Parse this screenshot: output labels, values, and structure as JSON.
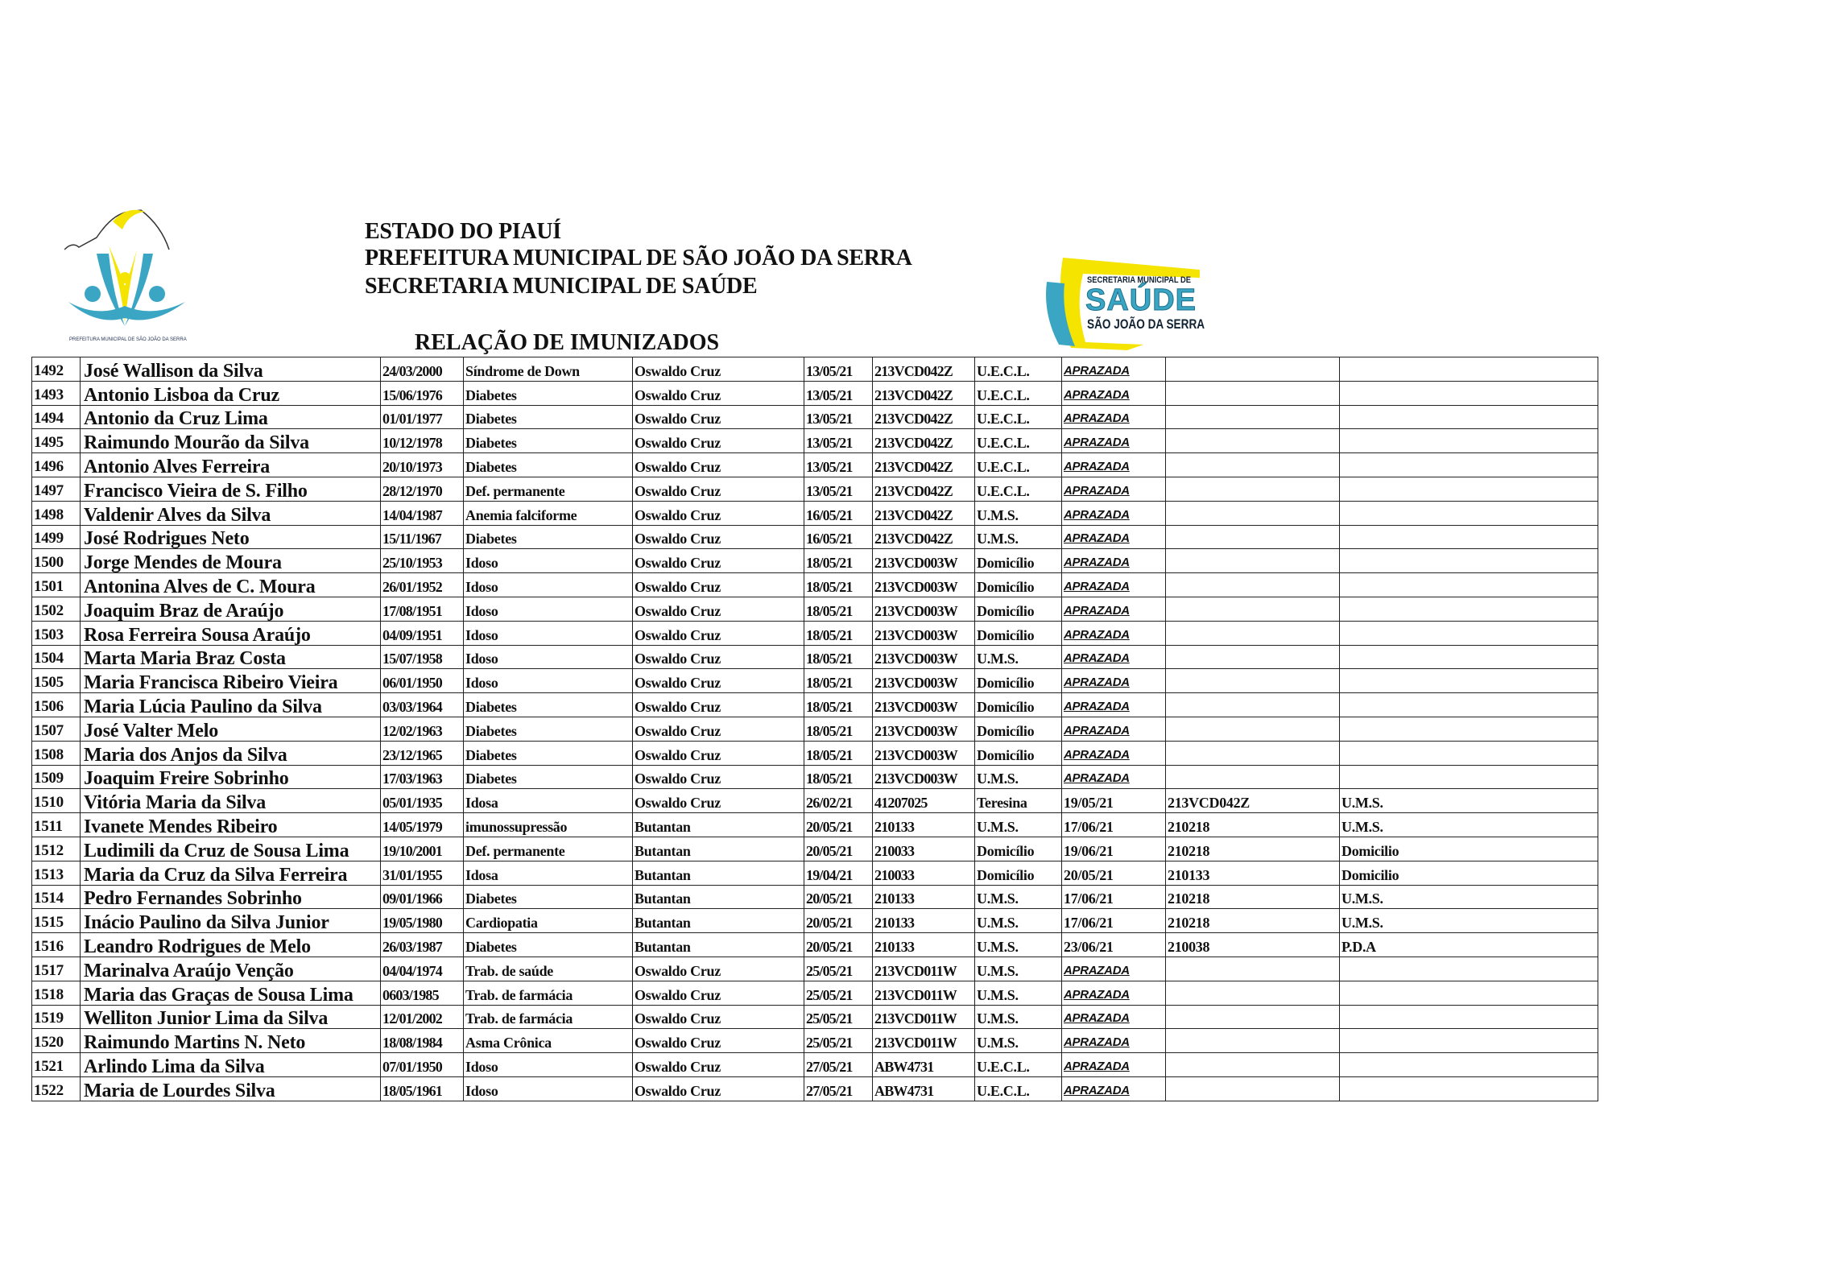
{
  "header": {
    "line1": "ESTADO DO PIAUÍ",
    "line2": "PREFEITURA MUNICIPAL DE SÃO JOÃO DA SERRA",
    "line3": "SECRETARIA MUNICIPAL DE SAÚDE",
    "title": "RELAÇÃO DE IMUNIZADOS"
  },
  "logo_left": {
    "caption": "PREFEITURA MUNICIPAL DE SÃO JOÃO DA SERRA"
  },
  "logo_right": {
    "line1": "SECRETARIA MUNICIPAL DE",
    "line2": "SAÚDE",
    "line3": "SÃO JOÃO DA SERRA"
  },
  "colors": {
    "logo_blue": "#3aa6c4",
    "logo_yellow": "#f5e400",
    "text": "#111111"
  },
  "rows": [
    [
      "1492",
      "José Wallison da Silva",
      "24/03/2000",
      "Síndrome de Down",
      "Oswaldo Cruz",
      "13/05/21",
      "213VCD042Z",
      "U.E.C.L.",
      "APRAZADA",
      "",
      ""
    ],
    [
      "1493",
      "Antonio Lisboa da Cruz",
      "15/06/1976",
      "Diabetes",
      "Oswaldo Cruz",
      "13/05/21",
      "213VCD042Z",
      "U.E.C.L.",
      "APRAZADA",
      "",
      ""
    ],
    [
      "1494",
      "Antonio da Cruz Lima",
      "01/01/1977",
      "Diabetes",
      "Oswaldo Cruz",
      "13/05/21",
      "213VCD042Z",
      "U.E.C.L.",
      "APRAZADA",
      "",
      ""
    ],
    [
      "1495",
      "Raimundo Mourão da Silva",
      "10/12/1978",
      "Diabetes",
      "Oswaldo Cruz",
      "13/05/21",
      "213VCD042Z",
      "U.E.C.L.",
      "APRAZADA",
      "",
      ""
    ],
    [
      "1496",
      "Antonio Alves Ferreira",
      "20/10/1973",
      "Diabetes",
      "Oswaldo Cruz",
      "13/05/21",
      "213VCD042Z",
      "U.E.C.L.",
      "APRAZADA",
      "",
      ""
    ],
    [
      "1497",
      "Francisco Vieira de S. Filho",
      "28/12/1970",
      "Def. permanente",
      "Oswaldo Cruz",
      "13/05/21",
      "213VCD042Z",
      "U.E.C.L.",
      "APRAZADA",
      "",
      ""
    ],
    [
      "1498",
      "Valdenir Alves da Silva",
      "14/04/1987",
      "Anemia falciforme",
      "Oswaldo Cruz",
      "16/05/21",
      "213VCD042Z",
      "U.M.S.",
      "APRAZADA",
      "",
      ""
    ],
    [
      "1499",
      "José Rodrigues Neto",
      "15/11/1967",
      "Diabetes",
      "Oswaldo Cruz",
      "16/05/21",
      "213VCD042Z",
      "U.M.S.",
      "APRAZADA",
      "",
      ""
    ],
    [
      "1500",
      "Jorge Mendes de Moura",
      "25/10/1953",
      "Idoso",
      "Oswaldo Cruz",
      "18/05/21",
      "213VCD003W",
      "Domicílio",
      "APRAZADA",
      "",
      ""
    ],
    [
      "1501",
      "Antonina Alves de C. Moura",
      "26/01/1952",
      "Idoso",
      "Oswaldo Cruz",
      "18/05/21",
      "213VCD003W",
      "Domicílio",
      "APRAZADA",
      "",
      ""
    ],
    [
      "1502",
      "Joaquim Braz de Araújo",
      "17/08/1951",
      "Idoso",
      "Oswaldo Cruz",
      "18/05/21",
      "213VCD003W",
      "Domicílio",
      "APRAZADA",
      "",
      ""
    ],
    [
      "1503",
      "Rosa Ferreira Sousa Araújo",
      "04/09/1951",
      "Idoso",
      "Oswaldo Cruz",
      "18/05/21",
      "213VCD003W",
      "Domicílio",
      "APRAZADA",
      "",
      ""
    ],
    [
      "1504",
      "Marta Maria Braz Costa",
      "15/07/1958",
      "Idoso",
      "Oswaldo Cruz",
      "18/05/21",
      "213VCD003W",
      "U.M.S.",
      "APRAZADA",
      "",
      ""
    ],
    [
      "1505",
      "Maria Francisca Ribeiro Vieira",
      "06/01/1950",
      "Idoso",
      "Oswaldo Cruz",
      "18/05/21",
      "213VCD003W",
      "Domicílio",
      "APRAZADA",
      "",
      ""
    ],
    [
      "1506",
      "Maria Lúcia Paulino da Silva",
      "03/03/1964",
      "Diabetes",
      "Oswaldo Cruz",
      "18/05/21",
      "213VCD003W",
      "Domicílio",
      "APRAZADA",
      "",
      ""
    ],
    [
      "1507",
      "José Valter Melo",
      "12/02/1963",
      "Diabetes",
      "Oswaldo Cruz",
      "18/05/21",
      "213VCD003W",
      "Domicílio",
      "APRAZADA",
      "",
      ""
    ],
    [
      "1508",
      "Maria dos Anjos da Silva",
      "23/12/1965",
      "Diabetes",
      "Oswaldo Cruz",
      "18/05/21",
      "213VCD003W",
      "Domicílio",
      "APRAZADA",
      "",
      ""
    ],
    [
      "1509",
      "Joaquim Freire Sobrinho",
      "17/03/1963",
      "Diabetes",
      "Oswaldo Cruz",
      "18/05/21",
      "213VCD003W",
      "U.M.S.",
      "APRAZADA",
      "",
      ""
    ],
    [
      "1510",
      "Vitória Maria da Silva",
      "05/01/1935",
      "Idosa",
      "Oswaldo Cruz",
      "26/02/21",
      "41207025",
      "Teresina",
      "19/05/21",
      "213VCD042Z",
      "U.M.S."
    ],
    [
      "1511",
      "Ivanete Mendes Ribeiro",
      "14/05/1979",
      "imunossupressão",
      "Butantan",
      "20/05/21",
      "210133",
      "U.M.S.",
      "17/06/21",
      "210218",
      "U.M.S."
    ],
    [
      "1512",
      "Ludimili da Cruz de Sousa Lima",
      "19/10/2001",
      "Def. permanente",
      "Butantan",
      "20/05/21",
      "210033",
      "Domicílio",
      "19/06/21",
      "210218",
      "Domicilio"
    ],
    [
      "1513",
      "Maria da Cruz da Silva Ferreira",
      "31/01/1955",
      "Idosa",
      "Butantan",
      "19/04/21",
      "210033",
      "Domicílio",
      "20/05/21",
      "210133",
      "Domicilio"
    ],
    [
      "1514",
      "Pedro Fernandes Sobrinho",
      "09/01/1966",
      "Diabetes",
      "Butantan",
      "20/05/21",
      "210133",
      "U.M.S.",
      "17/06/21",
      "210218",
      "U.M.S."
    ],
    [
      "1515",
      "Inácio Paulino da Silva Junior",
      "19/05/1980",
      "Cardiopatia",
      "Butantan",
      "20/05/21",
      "210133",
      "U.M.S.",
      "17/06/21",
      "210218",
      "U.M.S."
    ],
    [
      "1516",
      "Leandro Rodrigues de Melo",
      "26/03/1987",
      "Diabetes",
      "Butantan",
      "20/05/21",
      "210133",
      "U.M.S.",
      "23/06/21",
      "210038",
      "P.D.A"
    ],
    [
      "1517",
      "Marinalva Araújo Venção",
      "04/04/1974",
      "Trab. de saúde",
      "Oswaldo Cruz",
      "25/05/21",
      "213VCD011W",
      "U.M.S.",
      "APRAZADA",
      "",
      ""
    ],
    [
      "1518",
      "Maria das Graças de Sousa Lima",
      "0603/1985",
      "Trab. de farmácia",
      "Oswaldo Cruz",
      "25/05/21",
      "213VCD011W",
      "U.M.S.",
      "APRAZADA",
      "",
      ""
    ],
    [
      "1519",
      "Welliton Junior Lima da Silva",
      "12/01/2002",
      "Trab. de farmácia",
      "Oswaldo Cruz",
      "25/05/21",
      "213VCD011W",
      "U.M.S.",
      "APRAZADA",
      "",
      ""
    ],
    [
      "1520",
      "Raimundo Martins N. Neto",
      "18/08/1984",
      "Asma Crônica",
      "Oswaldo Cruz",
      "25/05/21",
      "213VCD011W",
      "U.M.S.",
      "APRAZADA",
      "",
      ""
    ],
    [
      "1521",
      "Arlindo Lima da Silva",
      "07/01/1950",
      "Idoso",
      "Oswaldo Cruz",
      "27/05/21",
      "ABW4731",
      "U.E.C.L.",
      "APRAZADA",
      "",
      ""
    ],
    [
      "1522",
      "Maria de Lourdes Silva",
      "18/05/1961",
      "Idoso",
      "Oswaldo Cruz",
      "27/05/21",
      "ABW4731",
      "U.E.C.L.",
      "APRAZADA",
      "",
      ""
    ]
  ]
}
